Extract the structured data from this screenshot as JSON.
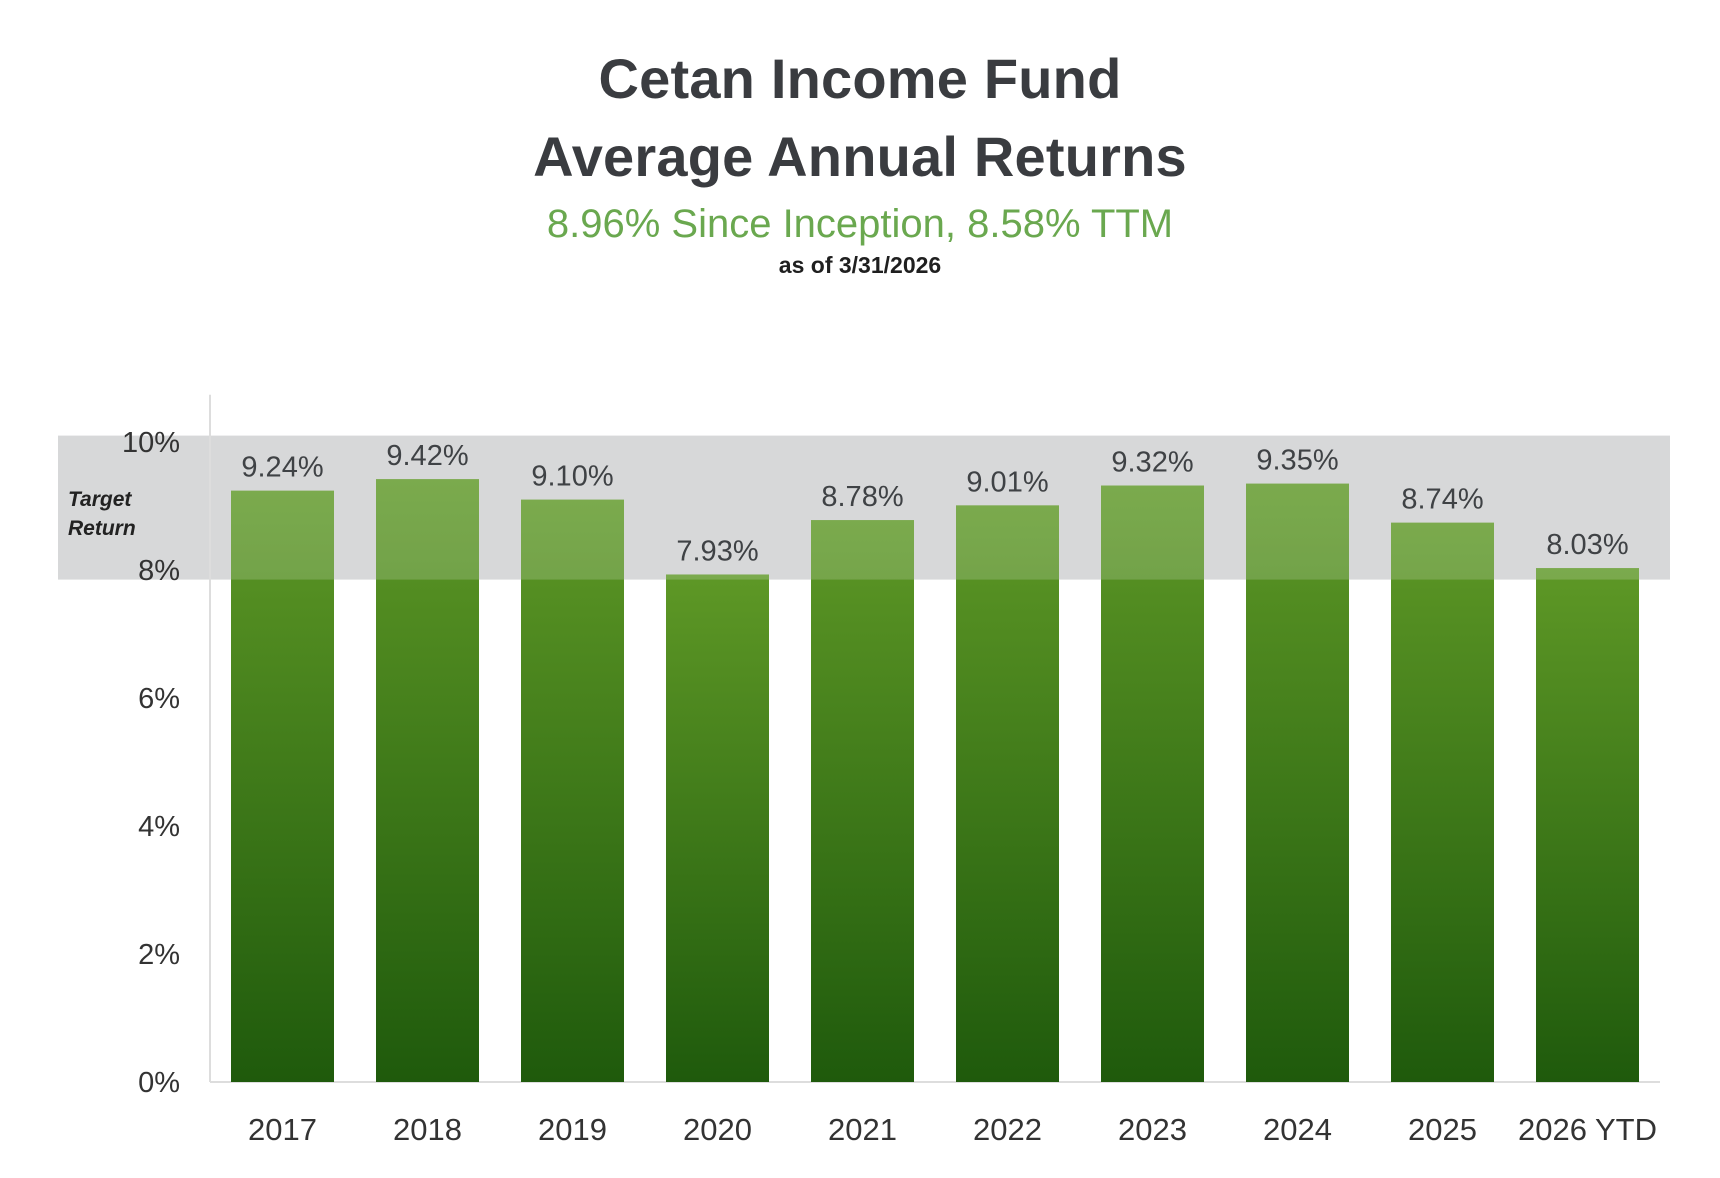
{
  "header": {
    "title_line1": "Cetan Income Fund",
    "title_line2": "Average Annual Returns",
    "subtitle": "8.96% Since Inception, 8.58% TTM",
    "as_of": "as of 3/31/2026"
  },
  "colors": {
    "title": "#3a3c40",
    "subtitle": "#6aa84f",
    "bar_top": "#5e9826",
    "bar_bottom": "#1f5a0c",
    "target_band": "#d7d8d9"
  },
  "chart_data": {
    "type": "bar",
    "title": "Cetan Income Fund Average Annual Returns",
    "subtitle": "8.96% Since Inception, 8.58% TTM",
    "categories": [
      "2017",
      "2018",
      "2019",
      "2020",
      "2021",
      "2022",
      "2023",
      "2024",
      "2025",
      "2026 YTD"
    ],
    "values": [
      9.24,
      9.42,
      9.1,
      7.93,
      8.78,
      9.01,
      9.32,
      9.35,
      8.74,
      8.03
    ],
    "value_labels": [
      "9.24%",
      "9.42%",
      "9.10%",
      "7.93%",
      "8.78%",
      "9.01%",
      "9.32%",
      "9.35%",
      "8.74%",
      "8.03%"
    ],
    "y_ticks": [
      0,
      2,
      4,
      6,
      8,
      10
    ],
    "y_tick_labels": [
      "0%",
      "2%",
      "4%",
      "6%",
      "8%",
      "10%"
    ],
    "ylim": [
      0,
      10.8
    ],
    "target_band": {
      "label": "Target Return",
      "from": 7.85,
      "to": 10.1
    },
    "xlabel": "",
    "ylabel": "",
    "grid": false,
    "legend": "none"
  }
}
